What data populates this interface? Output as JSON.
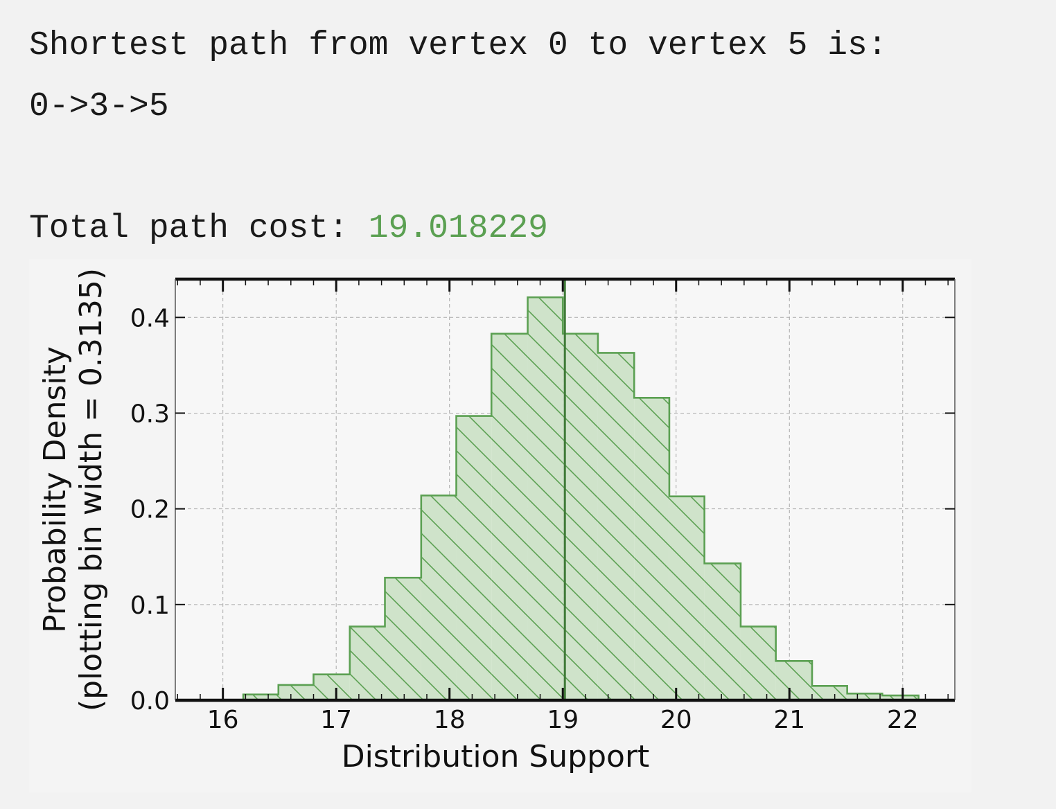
{
  "output": {
    "line1": "Shortest path from vertex 0 to vertex 5 is:",
    "line2": "0->3->5",
    "cost_label": "Total path cost: ",
    "cost_value": "19.018229"
  },
  "colors": {
    "accent": "#5ba052",
    "fill": "#cfe3ca",
    "text": "#1a1a1a"
  },
  "chart_data": {
    "type": "histogram",
    "title": "",
    "xlabel": "Distribution Support",
    "ylabel": "Probability Density\n(plotting bin width = 0.3135)",
    "xlim": [
      15.58,
      22.46
    ],
    "ylim": [
      0,
      0.44
    ],
    "xticks": [
      16,
      17,
      18,
      19,
      20,
      21,
      22
    ],
    "yticks": [
      0.0,
      0.1,
      0.2,
      0.3,
      0.4
    ],
    "ytick_labels": [
      "0.0",
      "0.1",
      "0.2",
      "0.3",
      "0.4"
    ],
    "grid": true,
    "bin_edges": [
      16.18,
      16.49,
      16.8,
      17.12,
      17.43,
      17.75,
      18.06,
      18.37,
      18.69,
      19.0,
      19.31,
      19.63,
      19.94,
      20.25,
      20.57,
      20.88,
      21.2,
      21.51,
      21.82,
      22.14
    ],
    "values": [
      0.006,
      0.016,
      0.027,
      0.077,
      0.128,
      0.214,
      0.297,
      0.383,
      0.421,
      0.383,
      0.363,
      0.316,
      0.213,
      0.143,
      0.077,
      0.041,
      0.015,
      0.007,
      0.005
    ],
    "vline": 19.018229,
    "hatch": "\\\\"
  }
}
